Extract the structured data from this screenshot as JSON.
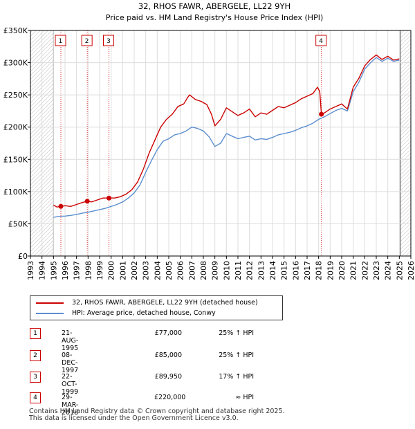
{
  "chart_data": {
    "type": "line",
    "title": "32, RHOS FAWR, ABERGELE, LL22 9YH",
    "subtitle": "Price paid vs. HM Land Registry's House Price Index (HPI)",
    "xlim": [
      1993,
      2026
    ],
    "ylim": [
      0,
      350000
    ],
    "x_ticks": [
      "1993",
      "1994",
      "1995",
      "1996",
      "1997",
      "1998",
      "1999",
      "2000",
      "2001",
      "2002",
      "2003",
      "2004",
      "2005",
      "2006",
      "2007",
      "2008",
      "2009",
      "2010",
      "2011",
      "2012",
      "2013",
      "2014",
      "2015",
      "2016",
      "2017",
      "2018",
      "2019",
      "2020",
      "2021",
      "2022",
      "2023",
      "2024",
      "2025",
      "2026"
    ],
    "y_ticks": [
      {
        "value": 0,
        "label": "£0"
      },
      {
        "value": 50000,
        "label": "£50K"
      },
      {
        "value": 100000,
        "label": "£100K"
      },
      {
        "value": 150000,
        "label": "£150K"
      },
      {
        "value": 200000,
        "label": "£200K"
      },
      {
        "value": 250000,
        "label": "£250K"
      },
      {
        "value": 300000,
        "label": "£300K"
      },
      {
        "value": 350000,
        "label": "£350K"
      }
    ],
    "hatched_before": 1995.0,
    "hatched_after": 2025.1,
    "series": [
      {
        "name": "32, RHOS FAWR, ABERGELE, LL22 9YH (detached house)",
        "color": "#cc0000",
        "points": [
          [
            1995.0,
            79000
          ],
          [
            1995.3,
            76000
          ],
          [
            1995.64,
            77000
          ],
          [
            1996.0,
            78000
          ],
          [
            1996.5,
            77000
          ],
          [
            1997.0,
            80000
          ],
          [
            1997.5,
            83000
          ],
          [
            1997.93,
            85000
          ],
          [
            1998.3,
            84000
          ],
          [
            1998.8,
            87000
          ],
          [
            1999.3,
            90000
          ],
          [
            1999.81,
            89950
          ],
          [
            2000.3,
            90000
          ],
          [
            2000.8,
            92000
          ],
          [
            2001.3,
            96000
          ],
          [
            2001.8,
            103000
          ],
          [
            2002.3,
            115000
          ],
          [
            2002.8,
            135000
          ],
          [
            2003.3,
            160000
          ],
          [
            2003.8,
            180000
          ],
          [
            2004.3,
            200000
          ],
          [
            2004.8,
            212000
          ],
          [
            2005.3,
            220000
          ],
          [
            2005.8,
            232000
          ],
          [
            2006.3,
            236000
          ],
          [
            2006.6,
            245000
          ],
          [
            2006.8,
            250000
          ],
          [
            2007.3,
            243000
          ],
          [
            2007.8,
            240000
          ],
          [
            2008.3,
            235000
          ],
          [
            2008.7,
            220000
          ],
          [
            2009.0,
            202000
          ],
          [
            2009.5,
            212000
          ],
          [
            2010.0,
            230000
          ],
          [
            2010.5,
            224000
          ],
          [
            2011.0,
            218000
          ],
          [
            2011.5,
            222000
          ],
          [
            2012.0,
            228000
          ],
          [
            2012.5,
            216000
          ],
          [
            2013.0,
            222000
          ],
          [
            2013.5,
            220000
          ],
          [
            2014.0,
            226000
          ],
          [
            2014.5,
            232000
          ],
          [
            2015.0,
            230000
          ],
          [
            2015.5,
            234000
          ],
          [
            2016.0,
            238000
          ],
          [
            2016.5,
            244000
          ],
          [
            2017.0,
            248000
          ],
          [
            2017.5,
            252000
          ],
          [
            2017.9,
            262000
          ],
          [
            2018.1,
            255000
          ],
          [
            2018.24,
            220000
          ],
          [
            2018.5,
            222000
          ],
          [
            2019.0,
            228000
          ],
          [
            2019.5,
            232000
          ],
          [
            2020.0,
            236000
          ],
          [
            2020.5,
            228000
          ],
          [
            2021.0,
            262000
          ],
          [
            2021.5,
            276000
          ],
          [
            2022.0,
            295000
          ],
          [
            2022.5,
            305000
          ],
          [
            2023.0,
            312000
          ],
          [
            2023.5,
            305000
          ],
          [
            2024.0,
            310000
          ],
          [
            2024.5,
            304000
          ],
          [
            2025.0,
            306000
          ]
        ]
      },
      {
        "name": "HPI: Average price, detached house, Conwy",
        "color": "#5b8ecf",
        "points": [
          [
            1995.0,
            60000
          ],
          [
            1995.5,
            61500
          ],
          [
            1996.0,
            62000
          ],
          [
            1996.5,
            63000
          ],
          [
            1997.0,
            64500
          ],
          [
            1997.5,
            66500
          ],
          [
            1998.0,
            68000
          ],
          [
            1998.5,
            70000
          ],
          [
            1999.0,
            72000
          ],
          [
            1999.5,
            74000
          ],
          [
            2000.0,
            77000
          ],
          [
            2000.5,
            80000
          ],
          [
            2001.0,
            84000
          ],
          [
            2001.5,
            90000
          ],
          [
            2002.0,
            98000
          ],
          [
            2002.5,
            110000
          ],
          [
            2003.0,
            130000
          ],
          [
            2003.5,
            148000
          ],
          [
            2004.0,
            165000
          ],
          [
            2004.5,
            178000
          ],
          [
            2005.0,
            182000
          ],
          [
            2005.5,
            188000
          ],
          [
            2006.0,
            190000
          ],
          [
            2006.5,
            194000
          ],
          [
            2007.0,
            200000
          ],
          [
            2007.5,
            198000
          ],
          [
            2008.0,
            194000
          ],
          [
            2008.5,
            185000
          ],
          [
            2009.0,
            170000
          ],
          [
            2009.5,
            175000
          ],
          [
            2010.0,
            190000
          ],
          [
            2010.5,
            186000
          ],
          [
            2011.0,
            182000
          ],
          [
            2011.5,
            184000
          ],
          [
            2012.0,
            186000
          ],
          [
            2012.5,
            180000
          ],
          [
            2013.0,
            182000
          ],
          [
            2013.5,
            181000
          ],
          [
            2014.0,
            184000
          ],
          [
            2014.5,
            188000
          ],
          [
            2015.0,
            190000
          ],
          [
            2015.5,
            192000
          ],
          [
            2016.0,
            195000
          ],
          [
            2016.5,
            199000
          ],
          [
            2017.0,
            202000
          ],
          [
            2017.5,
            206000
          ],
          [
            2018.0,
            212000
          ],
          [
            2018.5,
            216000
          ],
          [
            2019.0,
            221000
          ],
          [
            2019.5,
            226000
          ],
          [
            2020.0,
            229000
          ],
          [
            2020.5,
            225000
          ],
          [
            2021.0,
            255000
          ],
          [
            2021.5,
            270000
          ],
          [
            2022.0,
            290000
          ],
          [
            2022.5,
            300000
          ],
          [
            2023.0,
            308000
          ],
          [
            2023.5,
            302000
          ],
          [
            2024.0,
            307000
          ],
          [
            2024.5,
            302000
          ],
          [
            2025.0,
            304000
          ]
        ]
      }
    ],
    "sales": [
      {
        "num": "1",
        "x": 1995.64,
        "price": 77000
      },
      {
        "num": "2",
        "x": 1997.93,
        "price": 85000
      },
      {
        "num": "3",
        "x": 1999.81,
        "price": 89950
      },
      {
        "num": "4",
        "x": 2018.24,
        "price": 220000
      }
    ]
  },
  "legend": {
    "property": "32, RHOS FAWR, ABERGELE, LL22 9YH (detached house)",
    "hpi": "HPI: Average price, detached house, Conwy"
  },
  "transactions": [
    {
      "num": "1",
      "date": "21-AUG-1995",
      "price": "£77,000",
      "hpi": "25% ↑ HPI"
    },
    {
      "num": "2",
      "date": "08-DEC-1997",
      "price": "£85,000",
      "hpi": "25% ↑ HPI"
    },
    {
      "num": "3",
      "date": "22-OCT-1999",
      "price": "£89,950",
      "hpi": "17% ↑ HPI"
    },
    {
      "num": "4",
      "date": "29-MAR-2018",
      "price": "£220,000",
      "hpi": "≈ HPI"
    }
  ],
  "footer": {
    "line1": "Contains HM Land Registry data © Crown copyright and database right 2025.",
    "line2": "This data is licensed under the Open Government Licence v3.0."
  },
  "colors": {
    "property": "#cc0000",
    "hpi": "#5b8ecf",
    "sale_border": "#cc0000"
  }
}
